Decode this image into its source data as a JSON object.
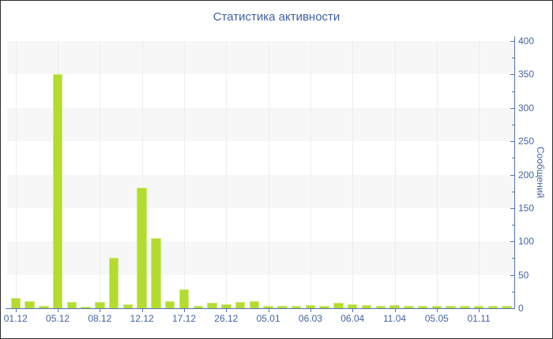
{
  "window": {
    "border_color": "#2f2f2f",
    "background_color": "#ffffff"
  },
  "chart_data": {
    "type": "bar",
    "title": "Статистика активности",
    "ylabel": "Сообщений",
    "xlabel": "",
    "ylim": [
      0,
      400
    ],
    "y_ticks": [
      0,
      50,
      100,
      150,
      200,
      250,
      300,
      350,
      400
    ],
    "y_minor_tick_step": 25,
    "y_axis_side": "right",
    "grid": "alternating horizontal stripes per 50 units, faint vertical lines at labeled ticks",
    "legend_position": "none",
    "label_every_n_bars": 3,
    "x_tick_labels": [
      "01.12",
      "05.12",
      "08.12",
      "12.12",
      "17.12",
      "26.12",
      "05.01",
      "06.03",
      "06.04",
      "11.04",
      "05.05",
      "01.11"
    ],
    "values": [
      15,
      11,
      3,
      350,
      10,
      2,
      9,
      75,
      6,
      180,
      105,
      11,
      28,
      4,
      8,
      6,
      9,
      11,
      3,
      3,
      4,
      5,
      4,
      8,
      6,
      5,
      4,
      5,
      4,
      4,
      3,
      4,
      3,
      3,
      4,
      4
    ],
    "colors": {
      "bar_fill": "#b3dc2f",
      "bar_highlight": "#cdeb7a",
      "stripe": "#f7f7f7",
      "vgrid": "#ededed",
      "axis_line": "#5571ab",
      "tick_label": "#44639f",
      "title": "#3f5fa3"
    }
  }
}
